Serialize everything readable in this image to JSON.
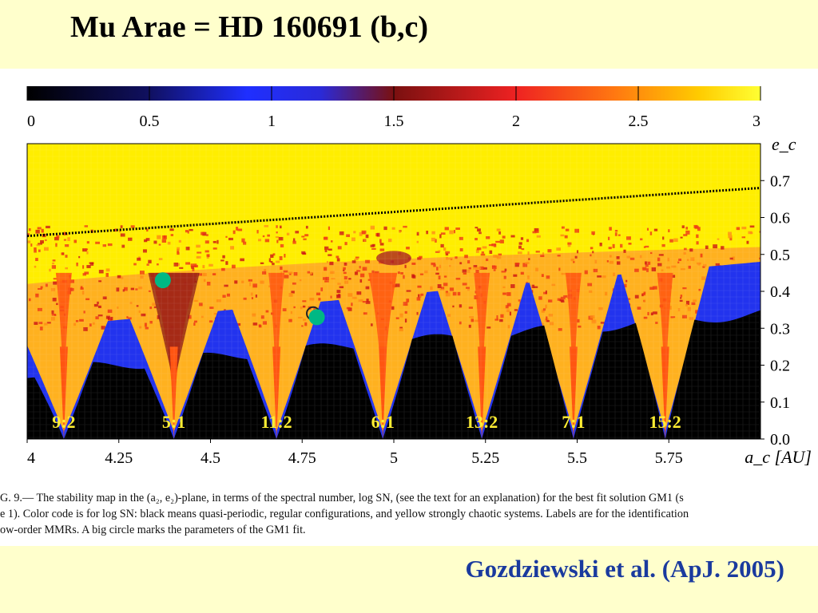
{
  "slide": {
    "title": "Mu Arae = HD 160691 (b,c)",
    "citation": "Gozdziewski et al. (ApJ. 2005)"
  },
  "caption_lines": [
    "G. 9.— The stability map in the (a₂, e₂)-plane, in terms of the spectral number, log SN, (see the text for an explanation) for the best fit solution GM1 (s",
    "e 1). Color code is for log SN: black means quasi-periodic, regular configurations, and yellow strongly chaotic systems. Labels are for the identification",
    "ow-order MMRs. A big circle marks the parameters of the GM1 fit."
  ],
  "colors": {
    "background": "#ffffcc",
    "citation": "#1a3a9e",
    "marker": "#00b884",
    "chaotic": "#ffee00",
    "regular": "#000000",
    "quasi_stable": "#2233ee"
  },
  "chart_data": {
    "type": "heatmap",
    "colorbar": {
      "range": [
        0,
        3
      ],
      "ticks": [
        "0",
        "0.5",
        "1",
        "1.5",
        "2",
        "2.5",
        "3"
      ],
      "stops": [
        {
          "v": 0.0,
          "c": "#000000"
        },
        {
          "v": 0.5,
          "c": "#101060"
        },
        {
          "v": 0.9,
          "c": "#1f2fff"
        },
        {
          "v": 1.2,
          "c": "#2a2ad8"
        },
        {
          "v": 1.5,
          "c": "#7a1010"
        },
        {
          "v": 2.0,
          "c": "#ee2222"
        },
        {
          "v": 2.4,
          "c": "#ff7711"
        },
        {
          "v": 2.75,
          "c": "#ffcc00"
        },
        {
          "v": 3.0,
          "c": "#ffff33"
        }
      ]
    },
    "xlabel": "a_c [AU]",
    "ylabel": "e_c",
    "xlim": [
      4.0,
      6.0
    ],
    "ylim": [
      0.0,
      0.8
    ],
    "xticks": [
      "4",
      "4.25",
      "4.5",
      "4.75",
      "5",
      "5.25",
      "5.5",
      "5.75"
    ],
    "yticks": [
      "0.0",
      "0.1",
      "0.2",
      "0.3",
      "0.4",
      "0.5",
      "0.6",
      "0.7"
    ],
    "collision_line": {
      "x": [
        4.0,
        6.0
      ],
      "y": [
        0.55,
        0.68
      ]
    },
    "resonances": [
      {
        "label": "9:2",
        "a": 4.1
      },
      {
        "label": "5:1",
        "a": 4.4
      },
      {
        "label": "11:2",
        "a": 4.68
      },
      {
        "label": "6:1",
        "a": 4.97
      },
      {
        "label": "13:2",
        "a": 5.24
      },
      {
        "label": "7:1",
        "a": 5.49
      },
      {
        "label": "15:2",
        "a": 5.74
      }
    ],
    "markers": [
      {
        "a": 4.37,
        "e": 0.43
      },
      {
        "a": 4.79,
        "e": 0.33
      }
    ],
    "small_circle": {
      "a": 4.78,
      "e": 0.34
    }
  }
}
